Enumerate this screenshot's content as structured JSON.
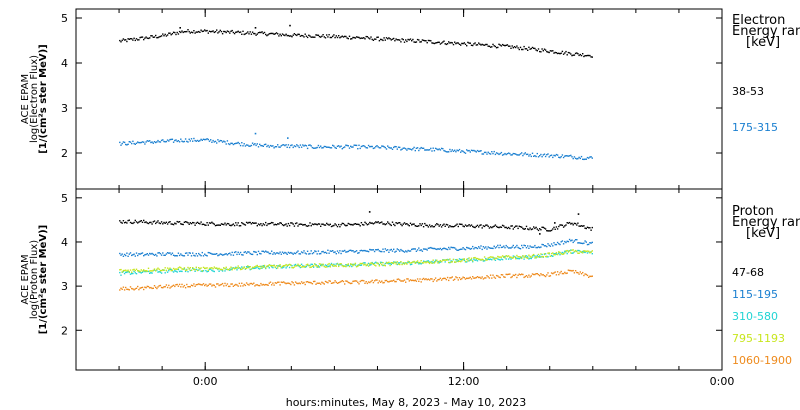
{
  "x_axis_label": "hours:minutes, May  8, 2023 - May 10, 2023",
  "x_tick_labels": [
    "0:00",
    "12:00",
    "0:00"
  ],
  "chart_data": [
    {
      "type": "scatter",
      "xlabel": "hours:minutes, May  8, 2023 - May 10, 2023",
      "ylabel_lines": [
        "ACE EPAM",
        "log(Electron Flux)",
        "[1/(cm²s ster MeV)]"
      ],
      "ylim": [
        1.2,
        5.2
      ],
      "y_ticks": [
        2,
        3,
        4,
        5
      ],
      "x_unit": "hours from May 9, 2023 0:00",
      "xlim": [
        -6,
        24
      ],
      "x_ticks": [
        0,
        12,
        24
      ],
      "legend_title": [
        "Electron",
        "Energy ranges",
        "[keV]"
      ],
      "legend_placement": "right",
      "series": [
        {
          "name": "38-53",
          "color": "#000000",
          "points": [
            [
              -4,
              4.5
            ],
            [
              -3,
              4.56
            ],
            [
              -2,
              4.62
            ],
            [
              -1,
              4.72
            ],
            [
              0,
              4.72
            ],
            [
              1,
              4.7
            ],
            [
              2,
              4.68
            ],
            [
              3,
              4.66
            ],
            [
              4,
              4.63
            ],
            [
              5,
              4.62
            ],
            [
              6,
              4.6
            ],
            [
              7,
              4.58
            ],
            [
              8,
              4.55
            ],
            [
              9,
              4.52
            ],
            [
              10,
              4.5
            ],
            [
              11,
              4.47
            ],
            [
              12,
              4.44
            ],
            [
              13,
              4.41
            ],
            [
              14,
              4.38
            ],
            [
              15,
              4.33
            ],
            [
              16,
              4.28
            ],
            [
              17,
              4.22
            ],
            [
              18,
              4.18
            ]
          ],
          "spikes": [
            [
              -1.2,
              4.8
            ],
            [
              2.3,
              4.8
            ],
            [
              3.9,
              4.85
            ]
          ]
        },
        {
          "name": "175-315",
          "color": "#1a7fd0",
          "points": [
            [
              -4,
              2.22
            ],
            [
              -3,
              2.25
            ],
            [
              -2,
              2.27
            ],
            [
              -1,
              2.3
            ],
            [
              0,
              2.3
            ],
            [
              1,
              2.25
            ],
            [
              2,
              2.2
            ],
            [
              3,
              2.17
            ],
            [
              4,
              2.17
            ],
            [
              5,
              2.15
            ],
            [
              6,
              2.15
            ],
            [
              7,
              2.15
            ],
            [
              8,
              2.14
            ],
            [
              9,
              2.12
            ],
            [
              10,
              2.1
            ],
            [
              11,
              2.08
            ],
            [
              12,
              2.05
            ],
            [
              13,
              2.03
            ],
            [
              14,
              2.0
            ],
            [
              15,
              1.98
            ],
            [
              16,
              1.96
            ],
            [
              17,
              1.93
            ],
            [
              18,
              1.9
            ]
          ],
          "spikes": [
            [
              2.3,
              2.45
            ],
            [
              3.8,
              2.35
            ]
          ]
        }
      ]
    },
    {
      "type": "scatter",
      "xlabel": "hours:minutes, May  8, 2023 - May 10, 2023",
      "ylabel_lines": [
        "ACE EPAM",
        "log(Proton Flux)",
        "[1/(cm²s ster MeV)]"
      ],
      "ylim": [
        1.1,
        5.2
      ],
      "y_ticks": [
        2,
        3,
        4,
        5
      ],
      "x_unit": "hours from May 9, 2023 0:00",
      "xlim": [
        -6,
        24
      ],
      "x_ticks": [
        0,
        12,
        24
      ],
      "legend_title": [
        "Proton",
        "Energy ranges",
        "[keV]"
      ],
      "legend_placement": "right",
      "series": [
        {
          "name": "47-68",
          "color": "#000000",
          "points": [
            [
              -4,
              4.48
            ],
            [
              -3,
              4.47
            ],
            [
              -2,
              4.45
            ],
            [
              -1,
              4.44
            ],
            [
              0,
              4.43
            ],
            [
              1,
              4.42
            ],
            [
              2,
              4.42
            ],
            [
              3,
              4.42
            ],
            [
              4,
              4.41
            ],
            [
              5,
              4.41
            ],
            [
              6,
              4.4
            ],
            [
              7,
              4.41
            ],
            [
              8,
              4.45
            ],
            [
              9,
              4.42
            ],
            [
              10,
              4.4
            ],
            [
              11,
              4.39
            ],
            [
              12,
              4.38
            ],
            [
              13,
              4.37
            ],
            [
              14,
              4.35
            ],
            [
              15,
              4.33
            ],
            [
              16,
              4.3
            ],
            [
              17,
              4.45
            ],
            [
              18,
              4.3
            ]
          ],
          "spikes": [
            [
              7.6,
              4.7
            ],
            [
              15.5,
              4.2
            ],
            [
              16.2,
              4.45
            ],
            [
              17.3,
              4.65
            ]
          ]
        },
        {
          "name": "115-195",
          "color": "#1a7fd0",
          "points": [
            [
              -4,
              3.73
            ],
            [
              -3,
              3.73
            ],
            [
              -2,
              3.74
            ],
            [
              -1,
              3.74
            ],
            [
              0,
              3.74
            ],
            [
              1,
              3.75
            ],
            [
              2,
              3.76
            ],
            [
              3,
              3.77
            ],
            [
              4,
              3.77
            ],
            [
              5,
              3.78
            ],
            [
              6,
              3.79
            ],
            [
              7,
              3.8
            ],
            [
              8,
              3.82
            ],
            [
              9,
              3.82
            ],
            [
              10,
              3.84
            ],
            [
              11,
              3.86
            ],
            [
              12,
              3.87
            ],
            [
              13,
              3.89
            ],
            [
              14,
              3.91
            ],
            [
              15,
              3.9
            ],
            [
              16,
              3.95
            ],
            [
              17,
              4.05
            ],
            [
              18,
              3.97
            ]
          ],
          "spikes": []
        },
        {
          "name": "310-580",
          "color": "#22d4d4",
          "points": [
            [
              -4,
              3.3
            ],
            [
              -3,
              3.33
            ],
            [
              -2,
              3.35
            ],
            [
              -1,
              3.38
            ],
            [
              0,
              3.38
            ],
            [
              1,
              3.4
            ],
            [
              2,
              3.42
            ],
            [
              3,
              3.45
            ],
            [
              4,
              3.47
            ],
            [
              5,
              3.48
            ],
            [
              6,
              3.5
            ],
            [
              7,
              3.5
            ],
            [
              8,
              3.52
            ],
            [
              9,
              3.53
            ],
            [
              10,
              3.55
            ],
            [
              11,
              3.58
            ],
            [
              12,
              3.6
            ],
            [
              13,
              3.62
            ],
            [
              14,
              3.65
            ],
            [
              15,
              3.67
            ],
            [
              16,
              3.72
            ],
            [
              17,
              3.8
            ],
            [
              18,
              3.77
            ]
          ],
          "spikes": []
        },
        {
          "name": "795-1193",
          "color": "#c8e61e",
          "points": [
            [
              -4,
              3.36
            ],
            [
              -3,
              3.38
            ],
            [
              -2,
              3.4
            ],
            [
              -1,
              3.41
            ],
            [
              0,
              3.4
            ],
            [
              1,
              3.42
            ],
            [
              2,
              3.44
            ],
            [
              3,
              3.46
            ],
            [
              4,
              3.47
            ],
            [
              5,
              3.48
            ],
            [
              6,
              3.49
            ],
            [
              7,
              3.49
            ],
            [
              8,
              3.51
            ],
            [
              9,
              3.53
            ],
            [
              10,
              3.56
            ],
            [
              11,
              3.58
            ],
            [
              12,
              3.61
            ],
            [
              13,
              3.64
            ],
            [
              14,
              3.67
            ],
            [
              15,
              3.68
            ],
            [
              16,
              3.73
            ],
            [
              17,
              3.8
            ],
            [
              18,
              3.78
            ]
          ],
          "spikes": []
        },
        {
          "name": "1060-1900",
          "color": "#ee8a1c",
          "points": [
            [
              -4,
              2.95
            ],
            [
              -3,
              2.97
            ],
            [
              -2,
              3.0
            ],
            [
              -1,
              3.02
            ],
            [
              0,
              3.03
            ],
            [
              1,
              3.04
            ],
            [
              2,
              3.05
            ],
            [
              3,
              3.07
            ],
            [
              4,
              3.08
            ],
            [
              5,
              3.09
            ],
            [
              6,
              3.1
            ],
            [
              7,
              3.1
            ],
            [
              8,
              3.12
            ],
            [
              9,
              3.14
            ],
            [
              10,
              3.15
            ],
            [
              11,
              3.17
            ],
            [
              12,
              3.2
            ],
            [
              13,
              3.22
            ],
            [
              14,
              3.25
            ],
            [
              15,
              3.25
            ],
            [
              16,
              3.28
            ],
            [
              17,
              3.35
            ],
            [
              18,
              3.22
            ]
          ],
          "spikes": []
        }
      ]
    }
  ]
}
